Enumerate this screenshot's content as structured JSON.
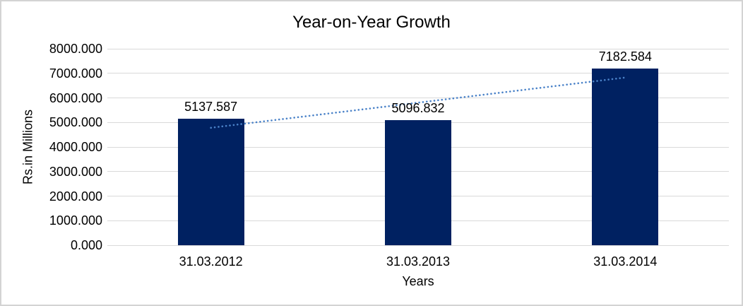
{
  "window": {
    "background": "#ffffff",
    "border_color": "#d3d3d3"
  },
  "chart_data": {
    "type": "bar",
    "title": "Year-on-Year Growth",
    "xlabel": "Years",
    "ylabel": "Rs.in Millions",
    "categories": [
      "31.03.2012",
      "31.03.2013",
      "31.03.2014"
    ],
    "values": [
      5137.587,
      5096.832,
      7182.584
    ],
    "data_labels": [
      "5137.587",
      "5096.832",
      "7182.584"
    ],
    "ylim": [
      0,
      8000
    ],
    "ytick_step": 1000,
    "ytick_labels": [
      "0.000",
      "1000.000",
      "2000.000",
      "3000.000",
      "4000.000",
      "5000.000",
      "6000.000",
      "7000.000",
      "8000.000"
    ],
    "grid": true,
    "legend": "none",
    "bar_color": "#002161",
    "gridline_color": "#d9d9d9",
    "text_color": "#000000",
    "trendline": {
      "type": "linear",
      "style": "dotted",
      "color": "#4a82c8"
    }
  }
}
